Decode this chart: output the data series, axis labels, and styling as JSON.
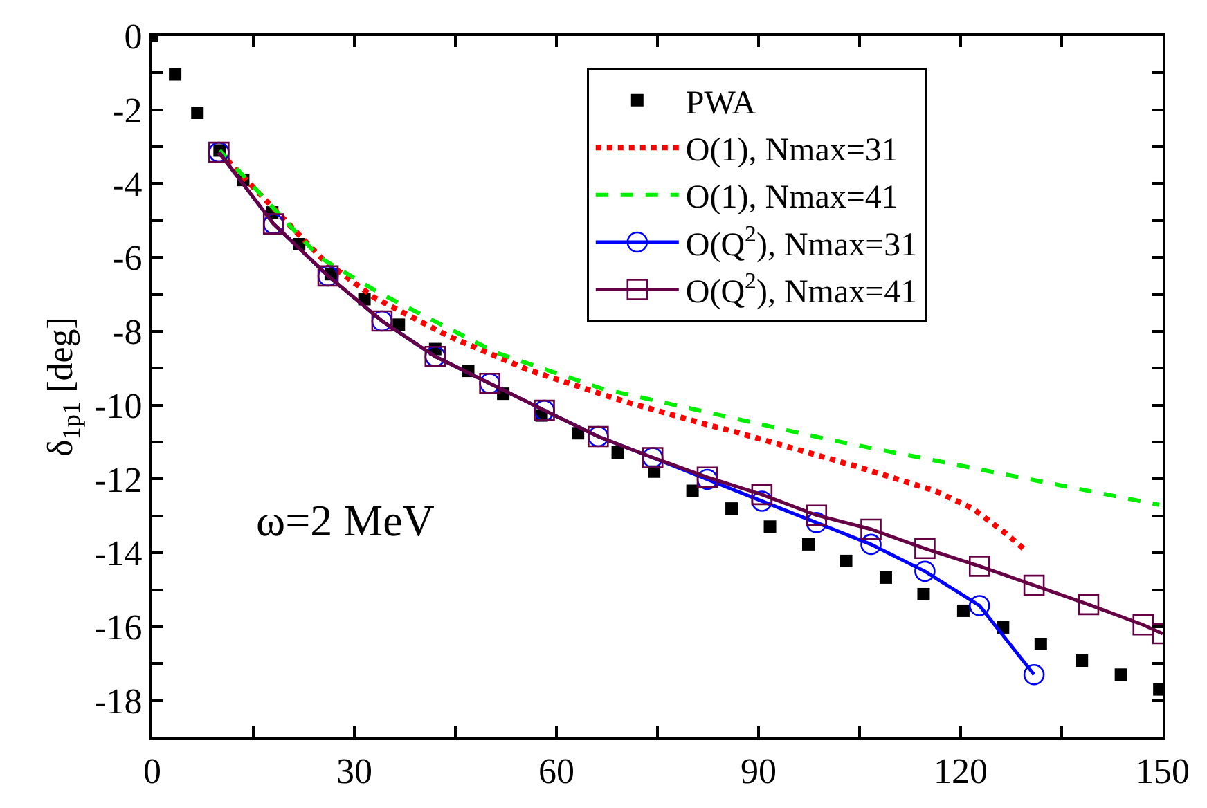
{
  "chart_data": {
    "type": "line",
    "ylabel": "δ$_{1p1}$ [deg]",
    "annotations": [
      "ω=2 MeV"
    ],
    "xlim": [
      0,
      150
    ],
    "xticks": [
      0,
      {
        "value": 15,
        "label": null
      },
      30,
      {
        "value": 45,
        "label": null
      },
      60,
      {
        "value": 75,
        "label": null
      },
      90,
      {
        "value": 105,
        "label": null
      },
      120,
      {
        "value": 135,
        "label": null
      },
      150
    ],
    "ylim": [
      -19,
      0
    ],
    "yticks": [
      0,
      {
        "value": -1,
        "label": null
      },
      -2,
      {
        "value": -3,
        "label": null
      },
      -4,
      {
        "value": -5,
        "label": null
      },
      -6,
      {
        "value": -7,
        "label": null
      },
      -8,
      {
        "value": -9,
        "label": null
      },
      -10,
      {
        "value": -11,
        "label": null
      },
      -12,
      {
        "value": -13,
        "label": null
      },
      -14,
      {
        "value": -15,
        "label": null
      },
      -16,
      {
        "value": -17,
        "label": null
      },
      -18
    ],
    "legend": "top right",
    "series": [
      {
        "name": "PWA",
        "type": "scatter",
        "marker": "square",
        "color": "#000000",
        "x": [
          0,
          3.4,
          6.7,
          10,
          13.5,
          17.8,
          21.8,
          26.5,
          31.5,
          36.6,
          42,
          46.9,
          52.1,
          57.8,
          63.2,
          69.1,
          74.5,
          80.2,
          86,
          91.7,
          97.4,
          103,
          108.9,
          114.5,
          120.4,
          126.3,
          131.9,
          138,
          143.8,
          149.5
        ],
        "values": [
          0,
          -1.04,
          -2.08,
          -3.1,
          -3.9,
          -4.78,
          -5.64,
          -6.45,
          -7.13,
          -7.82,
          -8.48,
          -9.07,
          -9.69,
          -10.28,
          -10.76,
          -11.28,
          -11.8,
          -12.32,
          -12.8,
          -13.29,
          -13.77,
          -14.22,
          -14.67,
          -15.12,
          -15.57,
          -16.02,
          -16.47,
          -16.92,
          -17.3,
          -17.7
        ]
      },
      {
        "name": "O(1), Nmax=31",
        "line_style": "dotted",
        "marker": "none",
        "color": "#ff0000",
        "x": [
          10,
          25.3,
          33,
          44,
          55.6,
          67.7,
          70.7,
          82.8,
          85.9,
          91.9,
          104,
          116.2,
          121.8,
          126.9,
          129.3
        ],
        "values": [
          -3.15,
          -6.05,
          -7.09,
          -8.13,
          -9.03,
          -9.76,
          -9.93,
          -10.55,
          -10.69,
          -11.0,
          -11.63,
          -12.32,
          -12.8,
          -13.5,
          -13.88
        ]
      },
      {
        "name": "O(1), Nmax=41",
        "line_style": "dashed",
        "marker": "none",
        "color": "#00ee00",
        "x": [
          10,
          24.8,
          33.7,
          51.1,
          66.7,
          100.4,
          149.5
        ],
        "values": [
          -3.1,
          -5.99,
          -6.96,
          -8.58,
          -9.55,
          -10.93,
          -12.7
        ]
      },
      {
        "name": "O(Q$^{2}$), Nmax=31",
        "line_style": "solid",
        "marker": "circle",
        "color": "#0000ff",
        "x": [
          9.9,
          18,
          26.1,
          34.1,
          42,
          50.1,
          58.2,
          66.2,
          74.3,
          82.4,
          90.5,
          98.6,
          106.7,
          114.7,
          122.8,
          130.9
        ],
        "values": [
          -3.15,
          -5.09,
          -6.5,
          -7.72,
          -8.68,
          -9.41,
          -10.14,
          -10.85,
          -11.42,
          -12.01,
          -12.6,
          -13.18,
          -13.77,
          -14.5,
          -15.43,
          -17.3
        ]
      },
      {
        "name": "O(Q$^{2}$), Nmax=41",
        "line_style": "solid",
        "marker": "square",
        "color": "#660044",
        "x": [
          9.9,
          18,
          26.1,
          34.1,
          42,
          50.1,
          58.2,
          66.2,
          74.3,
          82.4,
          90.5,
          98.6,
          106.7,
          114.7,
          122.8,
          130.9,
          139,
          147.1,
          150
        ],
        "values": [
          -3.15,
          -5.09,
          -6.5,
          -7.72,
          -8.68,
          -9.41,
          -10.14,
          -10.85,
          -11.42,
          -11.95,
          -12.42,
          -12.98,
          -13.36,
          -13.88,
          -14.36,
          -14.88,
          -15.4,
          -15.95,
          -16.19
        ]
      }
    ]
  }
}
